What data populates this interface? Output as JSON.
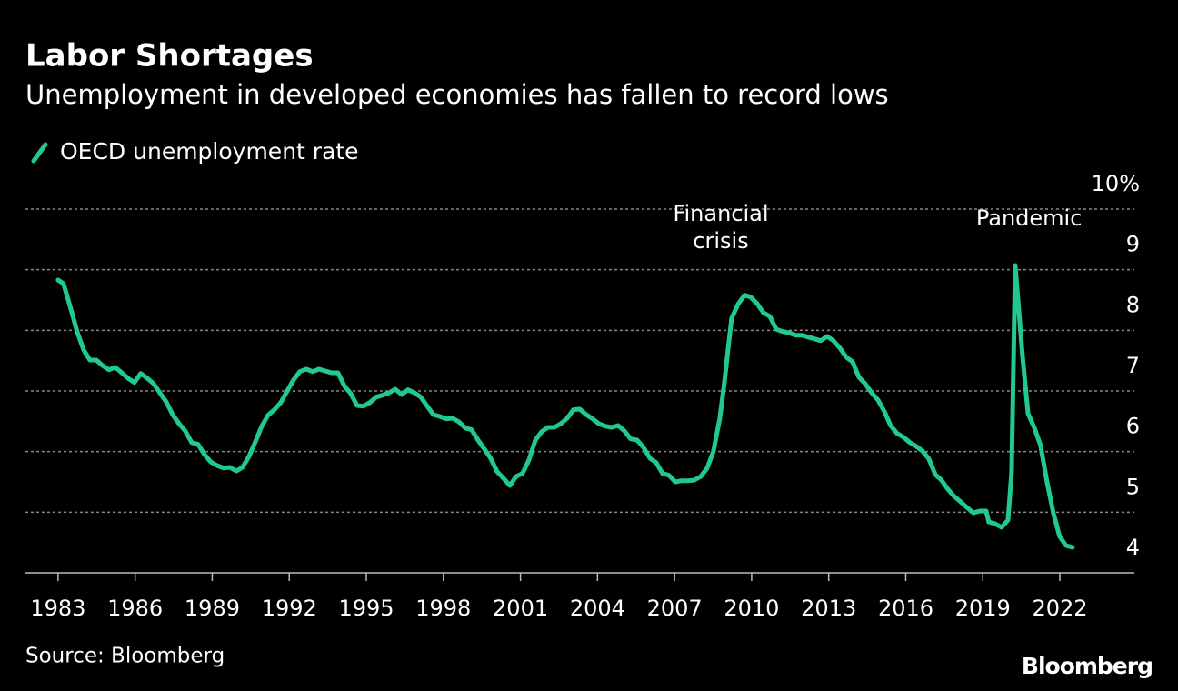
{
  "chart_data": {
    "type": "line",
    "title": "Labor Shortages",
    "subtitle": "Unemployment in developed economies has fallen to record lows",
    "source": "Source: Bloomberg",
    "brand": "Bloomberg",
    "annotations": [
      {
        "text": [
          "Financial",
          "crisis"
        ],
        "x": 2008.8
      },
      {
        "text": [
          "Pandemic"
        ],
        "x": 2020.8
      }
    ],
    "x": [
      1983.0,
      1983.21,
      1983.5,
      1983.74,
      1983.99,
      1984.24,
      1984.49,
      1984.73,
      1984.98,
      1985.23,
      1985.48,
      1985.72,
      1985.97,
      1986.22,
      1986.47,
      1986.72,
      1986.96,
      1987.21,
      1987.46,
      1987.71,
      1987.95,
      1988.2,
      1988.45,
      1988.7,
      1988.94,
      1989.19,
      1989.44,
      1989.69,
      1989.94,
      1990.18,
      1990.43,
      1990.68,
      1990.93,
      1991.17,
      1991.42,
      1991.67,
      1991.92,
      1992.16,
      1992.41,
      1992.66,
      1992.91,
      1993.16,
      1993.4,
      1993.65,
      1993.9,
      1994.15,
      1994.39,
      1994.64,
      1994.89,
      1995.14,
      1995.38,
      1995.63,
      1995.88,
      1996.13,
      1996.38,
      1996.62,
      1996.87,
      1997.12,
      1997.37,
      1997.61,
      1997.86,
      1998.11,
      1998.36,
      1998.61,
      1998.85,
      1999.1,
      1999.35,
      1999.6,
      1999.84,
      2000.09,
      2000.34,
      2000.59,
      2000.83,
      2001.08,
      2001.33,
      2001.58,
      2001.83,
      2002.07,
      2002.32,
      2002.57,
      2002.82,
      2003.06,
      2003.31,
      2003.56,
      2003.81,
      2004.05,
      2004.3,
      2004.55,
      2004.8,
      2005.05,
      2005.29,
      2005.54,
      2005.79,
      2006.04,
      2006.28,
      2006.53,
      2006.78,
      2007.03,
      2007.27,
      2007.52,
      2007.77,
      2008.02,
      2008.27,
      2008.51,
      2008.76,
      2008.94,
      2009.08,
      2009.22,
      2009.47,
      2009.72,
      2009.96,
      2010.21,
      2010.46,
      2010.71,
      2010.95,
      2011.2,
      2011.45,
      2011.7,
      2011.95,
      2012.19,
      2012.44,
      2012.69,
      2012.94,
      2013.18,
      2013.43,
      2013.68,
      2013.93,
      2014.17,
      2014.42,
      2014.67,
      2014.92,
      2015.17,
      2015.41,
      2015.66,
      2015.91,
      2016.16,
      2016.4,
      2016.65,
      2016.9,
      2017.15,
      2017.39,
      2017.64,
      2017.89,
      2018.14,
      2018.38,
      2018.63,
      2018.88,
      2019.13,
      2019.23,
      2019.48,
      2019.73,
      2019.98,
      2020.12,
      2020.26,
      2020.4,
      2020.54,
      2020.76,
      2021.0,
      2021.25,
      2021.5,
      2021.75,
      2021.99,
      2022.24,
      2022.49
    ],
    "series": [
      {
        "name": "OECD unemployment rate",
        "color": "#22c98e",
        "values": [
          8.83,
          8.77,
          8.35,
          7.98,
          7.68,
          7.51,
          7.51,
          7.42,
          7.35,
          7.39,
          7.3,
          7.21,
          7.14,
          7.29,
          7.21,
          7.12,
          6.97,
          6.82,
          6.61,
          6.46,
          6.34,
          6.15,
          6.12,
          5.95,
          5.83,
          5.77,
          5.73,
          5.74,
          5.68,
          5.74,
          5.92,
          6.16,
          6.42,
          6.6,
          6.69,
          6.81,
          7.0,
          7.18,
          7.32,
          7.36,
          7.32,
          7.36,
          7.33,
          7.3,
          7.3,
          7.08,
          6.96,
          6.76,
          6.75,
          6.81,
          6.9,
          6.93,
          6.97,
          7.03,
          6.94,
          7.02,
          6.97,
          6.9,
          6.75,
          6.61,
          6.58,
          6.54,
          6.55,
          6.49,
          6.39,
          6.36,
          6.19,
          6.04,
          5.89,
          5.67,
          5.56,
          5.44,
          5.59,
          5.64,
          5.86,
          6.19,
          6.33,
          6.4,
          6.4,
          6.46,
          6.55,
          6.69,
          6.7,
          6.61,
          6.54,
          6.46,
          6.42,
          6.4,
          6.43,
          6.34,
          6.21,
          6.19,
          6.07,
          5.89,
          5.82,
          5.64,
          5.61,
          5.5,
          5.52,
          5.52,
          5.53,
          5.59,
          5.73,
          6.0,
          6.55,
          7.15,
          7.68,
          8.2,
          8.43,
          8.58,
          8.55,
          8.44,
          8.29,
          8.23,
          8.02,
          7.98,
          7.96,
          7.92,
          7.92,
          7.89,
          7.86,
          7.83,
          7.9,
          7.83,
          7.71,
          7.56,
          7.48,
          7.23,
          7.12,
          6.97,
          6.85,
          6.66,
          6.43,
          6.3,
          6.24,
          6.15,
          6.09,
          6.01,
          5.88,
          5.62,
          5.53,
          5.38,
          5.26,
          5.17,
          5.08,
          4.99,
          5.02,
          5.02,
          4.84,
          4.81,
          4.75,
          4.87,
          5.65,
          9.07,
          8.35,
          7.6,
          6.63,
          6.4,
          6.1,
          5.5,
          4.98,
          4.6,
          4.45,
          4.42
        ]
      }
    ],
    "xlim": [
      1981.73,
      2024.9
    ],
    "xticks": [
      1983,
      1986,
      1989,
      1992,
      1995,
      1998,
      2001,
      2004,
      2007,
      2010,
      2013,
      2016,
      2019,
      2022
    ],
    "ylim": [
      4,
      10
    ],
    "yticks": [
      4,
      5,
      6,
      7,
      8,
      9,
      {
        "value": 10,
        "label": "10%"
      }
    ],
    "grid": true
  }
}
